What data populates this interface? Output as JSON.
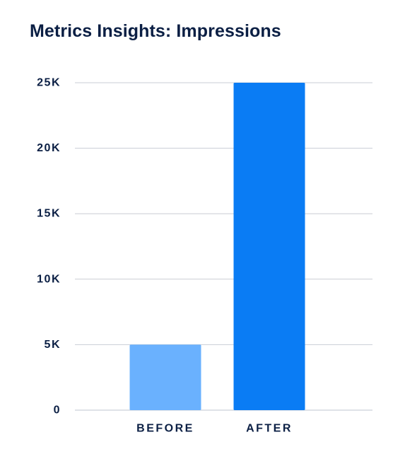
{
  "title": "Metrics Insights: Impressions",
  "chart_data": {
    "type": "bar",
    "title": "Metrics Insights: Impressions",
    "xlabel": "",
    "ylabel": "",
    "categories": [
      "BEFORE",
      "AFTER"
    ],
    "values": [
      5000,
      25000
    ],
    "ylim": [
      0,
      25000
    ],
    "yticks": [
      0,
      5000,
      10000,
      15000,
      20000,
      25000
    ],
    "ytick_labels": [
      "0",
      "5K",
      "10K",
      "15K",
      "20K",
      "25K"
    ],
    "bar_colors": [
      "#6ab1fe",
      "#0a7cf4"
    ],
    "grid": true,
    "legend": "none"
  }
}
